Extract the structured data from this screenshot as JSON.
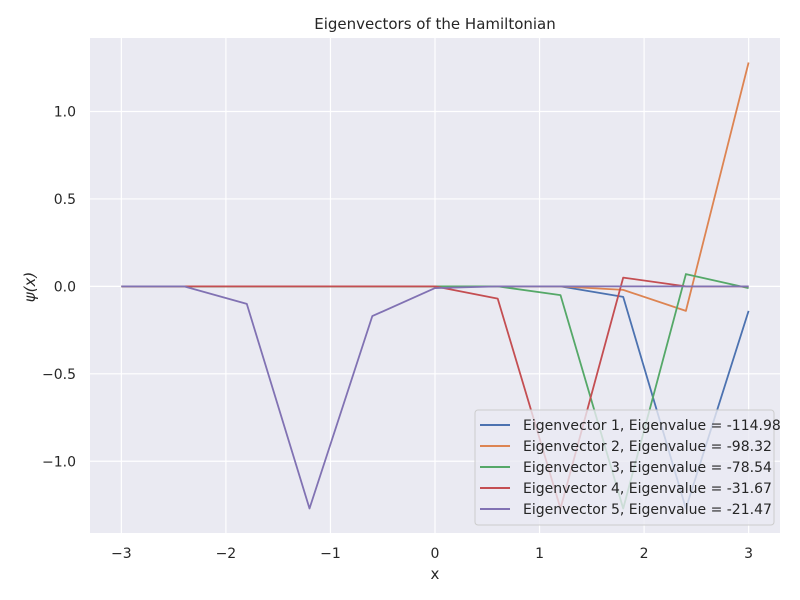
{
  "chart_data": {
    "type": "line",
    "title": "Eigenvectors of the Hamiltonian",
    "xlabel": "x",
    "ylabel": "ψ(x)",
    "xlim": [
      -3.3,
      3.3
    ],
    "ylim": [
      -1.41,
      1.42
    ],
    "x_ticks": [
      -3,
      -2,
      -1,
      0,
      1,
      2,
      3
    ],
    "x_tick_labels": [
      "−3",
      "−2",
      "−1",
      "0",
      "1",
      "2",
      "3"
    ],
    "y_ticks": [
      -1.0,
      -0.5,
      0.0,
      0.5,
      1.0
    ],
    "y_tick_labels": [
      "−1.0",
      "−0.5",
      "0.0",
      "0.5",
      "1.0"
    ],
    "grid": true,
    "legend_position": "lower-right",
    "x": [
      -3.0,
      -2.4,
      -1.8,
      -1.2,
      -0.6,
      0.0,
      0.6,
      1.2,
      1.8,
      2.4,
      3.0
    ],
    "series": [
      {
        "name": "Eigenvector 1, Eigenvalue = -114.98",
        "color": "#4c72b0",
        "values": [
          0.0,
          0.0,
          0.0,
          0.0,
          0.0,
          0.0,
          0.0,
          0.0,
          -0.06,
          -1.27,
          -0.14
        ]
      },
      {
        "name": "Eigenvector 2, Eigenvalue = -98.32",
        "color": "#dd8452",
        "values": [
          0.0,
          0.0,
          0.0,
          0.0,
          0.0,
          0.0,
          0.0,
          0.0,
          -0.02,
          -0.14,
          1.28
        ]
      },
      {
        "name": "Eigenvector 3, Eigenvalue = -78.54",
        "color": "#55a868",
        "values": [
          0.0,
          0.0,
          0.0,
          0.0,
          0.0,
          0.0,
          0.0,
          -0.05,
          -1.27,
          0.07,
          -0.01
        ]
      },
      {
        "name": "Eigenvector 4, Eigenvalue = -31.67",
        "color": "#c44e52",
        "values": [
          0.0,
          0.0,
          0.0,
          0.0,
          0.0,
          0.0,
          -0.07,
          -1.27,
          0.05,
          0.0,
          0.0
        ]
      },
      {
        "name": "Eigenvector 5, Eigenvalue = -21.47",
        "color": "#8172b3",
        "values": [
          0.0,
          0.0,
          -0.1,
          -1.27,
          -0.17,
          -0.01,
          0.0,
          0.0,
          0.0,
          0.0,
          0.0
        ]
      }
    ]
  }
}
